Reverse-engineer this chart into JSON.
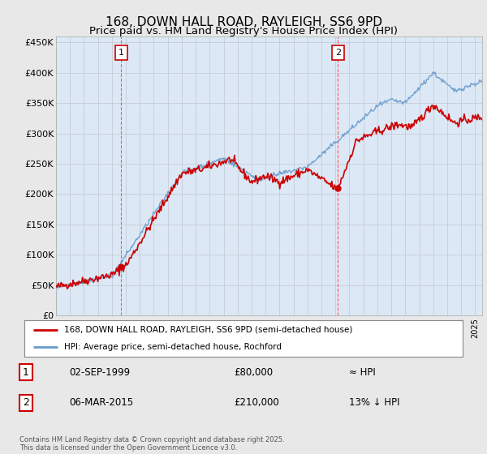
{
  "title": "168, DOWN HALL ROAD, RAYLEIGH, SS6 9PD",
  "subtitle": "Price paid vs. HM Land Registry's House Price Index (HPI)",
  "title_fontsize": 11,
  "subtitle_fontsize": 9.5,
  "ylabel_ticks": [
    "£0",
    "£50K",
    "£100K",
    "£150K",
    "£200K",
    "£250K",
    "£300K",
    "£350K",
    "£400K",
    "£450K"
  ],
  "ytick_values": [
    0,
    50000,
    100000,
    150000,
    200000,
    250000,
    300000,
    350000,
    400000,
    450000
  ],
  "ylim": [
    0,
    460000
  ],
  "xlim_start": 1995,
  "xlim_end": 2025.5,
  "bg_color": "#e8e8e8",
  "plot_bg_color": "#dce8f5",
  "red_line_color": "#cc0000",
  "blue_line_color": "#6699cc",
  "vline_color": "#ff4444",
  "ann1_x": 1999.67,
  "ann1_y": 80000,
  "ann2_x": 2015.17,
  "ann2_y": 210000,
  "legend_line1": "168, DOWN HALL ROAD, RAYLEIGH, SS6 9PD (semi-detached house)",
  "legend_line2": "HPI: Average price, semi-detached house, Rochford",
  "footnote": "Contains HM Land Registry data © Crown copyright and database right 2025.\nThis data is licensed under the Open Government Licence v3.0.",
  "table_row1_label": "1",
  "table_row1_date": "02-SEP-1999",
  "table_row1_price": "£80,000",
  "table_row1_hpi": "≈ HPI",
  "table_row2_label": "2",
  "table_row2_date": "06-MAR-2015",
  "table_row2_price": "£210,000",
  "table_row2_hpi": "13% ↓ HPI"
}
